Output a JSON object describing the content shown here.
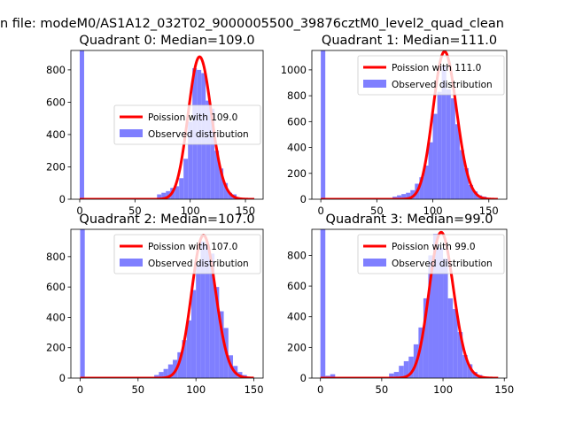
{
  "figure_title": "n file: modeM0/AS1A12_032T02_9000005500_39876cztM0_level2_quad_clean",
  "colors": {
    "observed": "#7f7fff",
    "poisson": "#ff0000"
  },
  "chart_data": [
    {
      "type": "bar",
      "title": "Quadrant 0: Median=109.0",
      "xlim": [
        -8,
        166
      ],
      "ylim": [
        0,
        920
      ],
      "xticks": [
        0,
        50,
        100,
        150
      ],
      "yticks": [
        0,
        200,
        400,
        600,
        800
      ],
      "legend": {
        "placement": "center-right",
        "entries": [
          "Poission with 109.0",
          "Observed distribution"
        ]
      },
      "series": [
        {
          "name": "Observed distribution",
          "type": "histogram",
          "bin_width": 4,
          "bins": [
            [
              0,
              920
            ],
            [
              70,
              30
            ],
            [
              74,
              40
            ],
            [
              78,
              50
            ],
            [
              82,
              70
            ],
            [
              86,
              80
            ],
            [
              90,
              130
            ],
            [
              94,
              250
            ],
            [
              98,
              480
            ],
            [
              102,
              810
            ],
            [
              106,
              800
            ],
            [
              110,
              780
            ],
            [
              114,
              610
            ],
            [
              118,
              560
            ],
            [
              122,
              300
            ],
            [
              126,
              190
            ],
            [
              130,
              100
            ],
            [
              134,
              40
            ],
            [
              138,
              30
            ]
          ]
        },
        {
          "name": "Poission with 109.0",
          "type": "poisson",
          "mean": 109.0,
          "peak": 880,
          "range": [
            0,
            158
          ]
        }
      ]
    },
    {
      "type": "bar",
      "title": "Quadrant 1: Median=111.0",
      "xlim": [
        -8,
        166
      ],
      "ylim": [
        0,
        1150
      ],
      "xticks": [
        0,
        50,
        100,
        150
      ],
      "yticks": [
        0,
        200,
        400,
        600,
        800,
        1000
      ],
      "legend": {
        "placement": "top-right",
        "entries": [
          "Poission with 111.0",
          "Observed distribution"
        ]
      },
      "series": [
        {
          "name": "Observed distribution",
          "type": "histogram",
          "bin_width": 4,
          "bins": [
            [
              0,
              1150
            ],
            [
              64,
              20
            ],
            [
              68,
              30
            ],
            [
              72,
              40
            ],
            [
              76,
              50
            ],
            [
              80,
              70
            ],
            [
              84,
              120
            ],
            [
              88,
              170
            ],
            [
              92,
              260
            ],
            [
              96,
              440
            ],
            [
              100,
              660
            ],
            [
              104,
              830
            ],
            [
              108,
              1030
            ],
            [
              112,
              850
            ],
            [
              116,
              780
            ],
            [
              120,
              580
            ],
            [
              124,
              380
            ],
            [
              128,
              240
            ],
            [
              132,
              110
            ],
            [
              136,
              60
            ],
            [
              140,
              30
            ],
            [
              144,
              20
            ]
          ]
        },
        {
          "name": "Poission with 111.0",
          "type": "poisson",
          "mean": 111.0,
          "peak": 1140,
          "range": [
            0,
            158
          ]
        }
      ]
    },
    {
      "type": "bar",
      "title": "Quadrant 2: Median=107.0",
      "xlim": [
        -8,
        158
      ],
      "ylim": [
        0,
        980
      ],
      "xticks": [
        0,
        50,
        100,
        150
      ],
      "yticks": [
        0,
        200,
        400,
        600,
        800
      ],
      "legend": {
        "placement": "top-right",
        "entries": [
          "Poission with 107.0",
          "Observed distribution"
        ]
      },
      "series": [
        {
          "name": "Observed distribution",
          "type": "histogram",
          "bin_width": 4,
          "bins": [
            [
              0,
              980
            ],
            [
              64,
              20
            ],
            [
              68,
              40
            ],
            [
              72,
              60
            ],
            [
              76,
              90
            ],
            [
              80,
              120
            ],
            [
              84,
              170
            ],
            [
              88,
              250
            ],
            [
              92,
              380
            ],
            [
              96,
              580
            ],
            [
              100,
              760
            ],
            [
              104,
              900
            ],
            [
              108,
              880
            ],
            [
              112,
              820
            ],
            [
              116,
              600
            ],
            [
              120,
              440
            ],
            [
              124,
              330
            ],
            [
              128,
              150
            ],
            [
              132,
              80
            ],
            [
              136,
              40
            ],
            [
              140,
              20
            ]
          ]
        },
        {
          "name": "Poission with 107.0",
          "type": "poisson",
          "mean": 107.0,
          "peak": 940,
          "range": [
            0,
            150
          ]
        }
      ]
    },
    {
      "type": "bar",
      "title": "Quadrant 3: Median=99.0",
      "xlim": [
        -7,
        152
      ],
      "ylim": [
        0,
        970
      ],
      "xticks": [
        0,
        50,
        100,
        150
      ],
      "yticks": [
        0,
        200,
        400,
        600,
        800
      ],
      "legend": {
        "placement": "top-right",
        "entries": [
          "Poission with 99.0",
          "Observed distribution"
        ]
      },
      "series": [
        {
          "name": "Observed distribution",
          "type": "histogram",
          "bin_width": 4,
          "bins": [
            [
              0,
              970
            ],
            [
              4,
              15
            ],
            [
              8,
              25
            ],
            [
              56,
              30
            ],
            [
              60,
              40
            ],
            [
              64,
              80
            ],
            [
              68,
              110
            ],
            [
              72,
              140
            ],
            [
              76,
              220
            ],
            [
              80,
              330
            ],
            [
              84,
              520
            ],
            [
              88,
              800
            ],
            [
              92,
              940
            ],
            [
              96,
              850
            ],
            [
              100,
              780
            ],
            [
              104,
              520
            ],
            [
              108,
              450
            ],
            [
              112,
              300
            ],
            [
              116,
              150
            ],
            [
              120,
              90
            ],
            [
              124,
              40
            ],
            [
              128,
              20
            ]
          ]
        },
        {
          "name": "Poission with 99.0",
          "type": "poisson",
          "mean": 99.0,
          "peak": 950,
          "range": [
            0,
            145
          ]
        }
      ]
    }
  ]
}
